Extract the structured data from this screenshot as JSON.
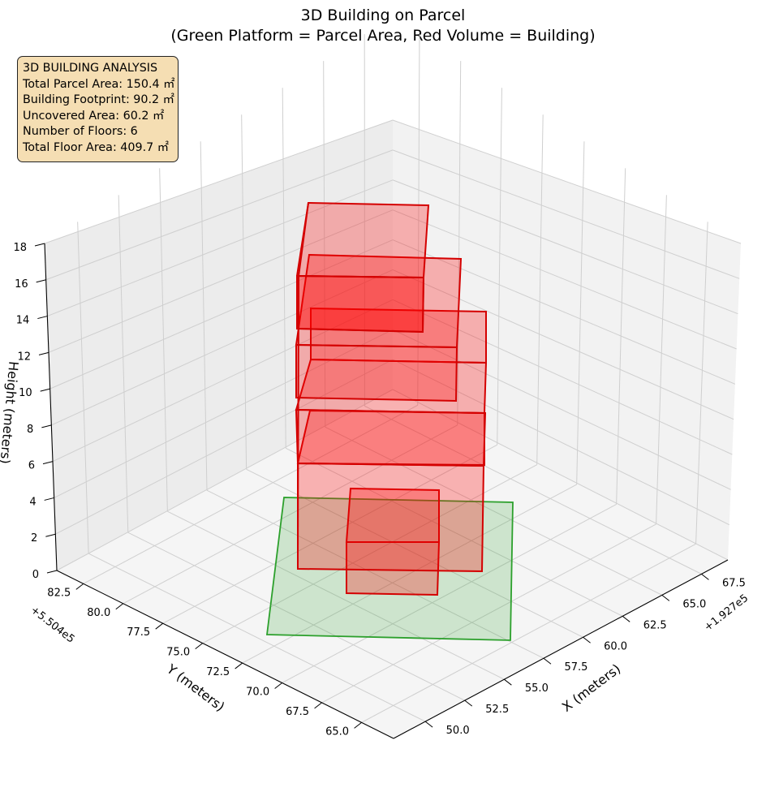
{
  "chart_data": {
    "type": "3d-bar",
    "title": "3D Building on Parcel",
    "subtitle": "(Green Platform = Parcel Area, Red Volume = Building)",
    "xlabel": "X (meters)",
    "ylabel": "Y (meters)",
    "zlabel": "Height (meters)",
    "x_offset_label": "+1.927e5",
    "y_offset_label": "+5.504e5",
    "x_ticks": [
      "50.0",
      "52.5",
      "55.0",
      "57.5",
      "60.0",
      "62.5",
      "65.0",
      "67.5"
    ],
    "y_ticks": [
      "65.0",
      "67.5",
      "70.0",
      "72.5",
      "75.0",
      "77.5",
      "80.0",
      "82.5"
    ],
    "z_ticks": [
      "0",
      "2",
      "4",
      "6",
      "8",
      "10",
      "12",
      "14",
      "16",
      "18"
    ],
    "z_range": [
      0,
      18
    ],
    "grid": true,
    "parcel": {
      "name": "Parcel Area",
      "color": "#2ca02c",
      "area": 150.4,
      "height": 0
    },
    "floors": [
      {
        "floor": 1,
        "z_bottom": 0,
        "z_top": 3,
        "color": "#ff0000"
      },
      {
        "floor": 2,
        "z_bottom": 3,
        "z_top": 6,
        "color": "#ff0000"
      },
      {
        "floor": 3,
        "z_bottom": 6,
        "z_top": 9,
        "color": "#ff0000"
      },
      {
        "floor": 4,
        "z_bottom": 9,
        "z_top": 12,
        "color": "#ff0000"
      },
      {
        "floor": 5,
        "z_bottom": 12,
        "z_top": 15,
        "color": "#ff0000"
      },
      {
        "floor": 6,
        "z_bottom": 15,
        "z_top": 18,
        "color": "#ff0000"
      }
    ]
  },
  "info_box": {
    "heading": "3D BUILDING ANALYSIS",
    "line1": "Total Parcel Area: 150.4 ㎡",
    "line2": "Building Footprint: 90.2 ㎡",
    "line3": "Uncovered Area: 60.2 ㎡",
    "line4": "Number of Floors: 6",
    "line5": "Total Floor Area: 409.7 ㎡"
  }
}
